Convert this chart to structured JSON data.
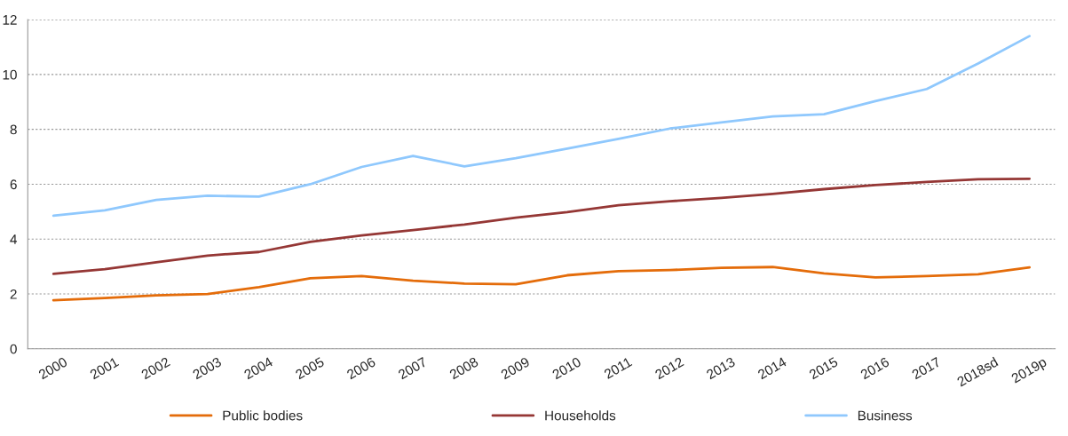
{
  "chart_data": {
    "type": "line",
    "categories": [
      "2000",
      "2001",
      "2002",
      "2003",
      "2004",
      "2005",
      "2006",
      "2007",
      "2008",
      "2009",
      "2010",
      "2011",
      "2012",
      "2013",
      "2014",
      "2015",
      "2016",
      "2017",
      "2018sd",
      "2019p"
    ],
    "series": [
      {
        "name": "Public bodies",
        "color": "#e46c0a",
        "values": [
          1.77,
          1.85,
          1.95,
          2.0,
          2.25,
          2.57,
          2.65,
          2.48,
          2.38,
          2.35,
          2.68,
          2.83,
          2.87,
          2.95,
          2.98,
          2.75,
          2.6,
          2.65,
          2.72,
          2.97
        ]
      },
      {
        "name": "Households",
        "color": "#953735",
        "values": [
          2.73,
          2.9,
          3.15,
          3.4,
          3.53,
          3.9,
          4.13,
          4.33,
          4.53,
          4.78,
          4.98,
          5.23,
          5.38,
          5.5,
          5.65,
          5.82,
          5.97,
          6.08,
          6.18,
          6.2
        ]
      },
      {
        "name": "Business",
        "color": "#8fc8fd",
        "values": [
          4.85,
          5.05,
          5.43,
          5.58,
          5.55,
          6.0,
          6.63,
          7.03,
          6.65,
          6.95,
          7.3,
          7.65,
          8.03,
          8.25,
          8.47,
          8.55,
          9.03,
          9.47,
          10.4,
          11.4
        ]
      }
    ],
    "ylim": [
      0,
      12
    ],
    "yticks": [
      0,
      2,
      4,
      6,
      8,
      10,
      12
    ],
    "grid": "y",
    "legend": "bottom",
    "marker": "none",
    "line_style": "solid"
  }
}
